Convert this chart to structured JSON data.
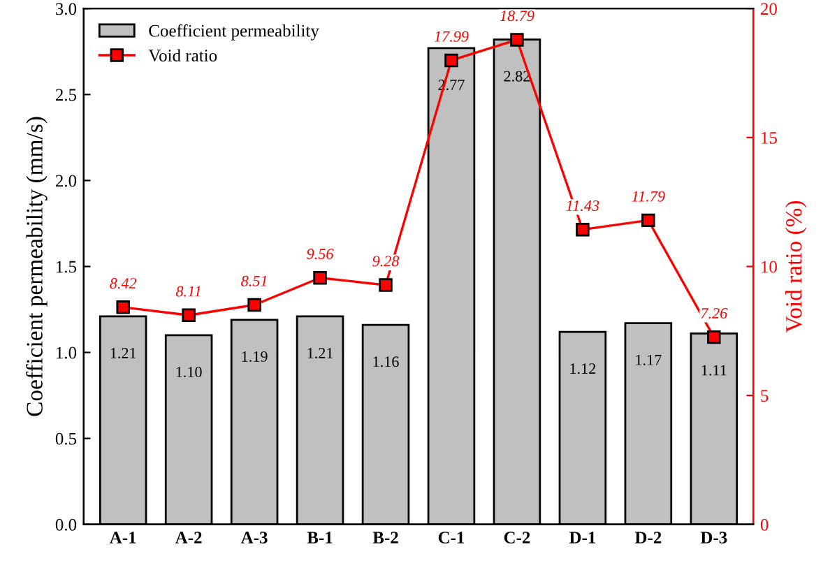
{
  "chart_data": {
    "type": "bar",
    "categories": [
      "A-1",
      "A-2",
      "A-3",
      "B-1",
      "B-2",
      "C-1",
      "C-2",
      "D-1",
      "D-2",
      "D-3"
    ],
    "ylabel": "Coefficient permeability (mm/s)",
    "y2label": "Void ratio (%)",
    "ylim": [
      0,
      3
    ],
    "yticks": [
      {
        "value": 0,
        "label": "0.0"
      },
      {
        "value": 0.5,
        "label": "0.5"
      },
      {
        "value": 1,
        "label": "1.0"
      },
      {
        "value": 1.5,
        "label": "1.5"
      },
      {
        "value": 2,
        "label": "2.0"
      },
      {
        "value": 2.5,
        "label": "2.5"
      },
      {
        "value": 3,
        "label": "3.0"
      }
    ],
    "y2lim": [
      0,
      20
    ],
    "y2ticks": [
      0,
      5,
      10,
      15,
      20
    ],
    "legend": "top left",
    "data_labels": true,
    "marker": "square",
    "line_style": "solid",
    "series": [
      {
        "name": "Coefficient permeability",
        "color": "#c0c0c0",
        "values": [
          1.21,
          1.1,
          1.19,
          1.21,
          1.16,
          2.77,
          2.82,
          1.12,
          1.17,
          1.11
        ],
        "value_labels": [
          "1.21",
          "1.10",
          "1.19",
          "1.21",
          "1.16",
          "2.77",
          "2.82",
          "1.12",
          "1.17",
          "1.11"
        ]
      },
      {
        "name": "Void ratio",
        "type": "line",
        "axis": "y2",
        "color": "#ff0000",
        "values": [
          8.42,
          8.11,
          8.51,
          9.56,
          9.28,
          17.99,
          18.79,
          11.43,
          11.79,
          7.26
        ]
      }
    ]
  }
}
